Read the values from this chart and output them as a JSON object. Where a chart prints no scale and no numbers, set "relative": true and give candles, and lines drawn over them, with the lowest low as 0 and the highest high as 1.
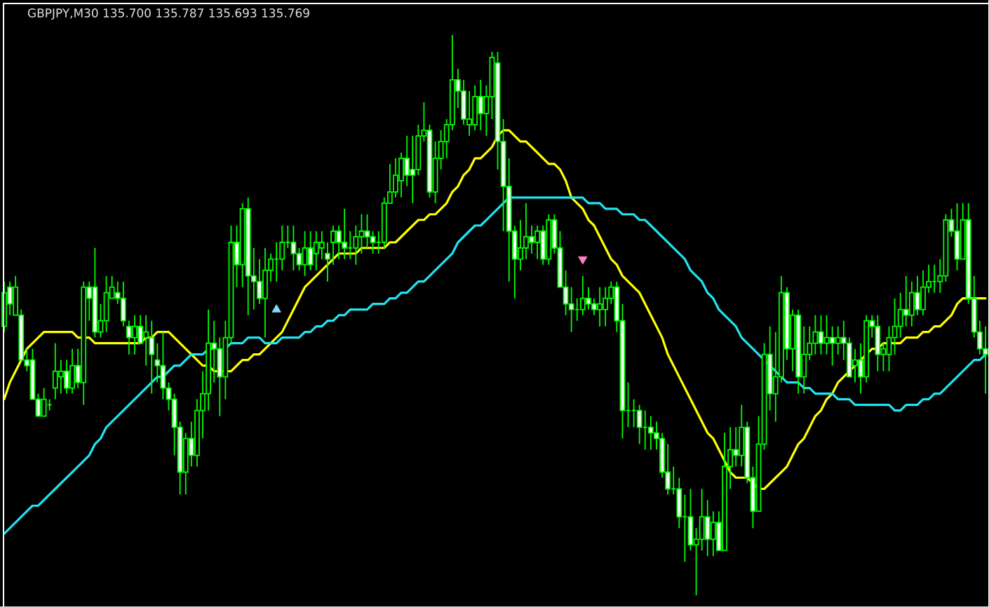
{
  "chart_data": {
    "type": "candlestick",
    "title": "GBPJPY,M30 135.700 135.787 135.693 135.769",
    "relative": true,
    "color": "#00ff00",
    "categories": [
      null,
      null,
      null,
      null,
      null,
      null,
      null,
      null,
      null,
      null,
      null,
      null,
      null,
      null,
      null,
      null,
      null,
      null,
      null,
      null,
      null,
      null,
      null,
      null,
      null,
      null,
      null,
      null,
      null,
      null,
      null,
      null,
      null,
      null,
      null,
      null,
      null,
      null,
      null,
      null,
      null,
      null,
      null,
      null,
      null,
      null,
      null,
      null,
      null,
      null,
      null,
      null,
      null,
      null,
      null,
      null,
      null,
      null,
      null,
      null,
      null,
      null,
      null,
      null,
      null,
      null,
      null,
      null,
      null,
      null,
      null,
      null,
      null,
      null,
      null,
      null,
      null,
      null,
      null,
      null,
      null,
      null,
      null,
      null,
      null,
      null,
      null,
      null,
      null,
      null,
      null,
      null,
      null,
      null,
      null,
      null,
      null,
      null,
      null,
      null,
      null,
      null,
      null,
      null,
      null,
      null,
      null,
      null,
      null,
      null,
      null,
      null,
      null,
      null,
      null,
      null,
      null,
      null,
      null,
      null,
      null,
      null,
      null,
      null,
      null,
      null,
      null,
      null,
      null,
      null,
      null,
      null,
      null,
      null,
      null,
      null,
      null,
      null,
      null,
      null,
      null,
      null,
      null,
      null,
      null,
      null,
      null,
      null,
      null,
      null,
      null,
      null,
      null,
      null,
      null,
      null,
      null,
      null,
      null,
      null,
      null,
      null,
      null,
      null,
      null,
      null,
      null,
      null,
      null,
      null,
      null,
      null,
      null,
      null
    ],
    "ohlc": [
      [
        0.48,
        0.56,
        0.47,
        0.54
      ],
      [
        0.55,
        0.56,
        0.5,
        0.52
      ],
      [
        0.5,
        0.57,
        0.5,
        0.55
      ],
      [
        0.5,
        0.51,
        0.42,
        0.42
      ],
      [
        0.42,
        0.44,
        0.4,
        0.41
      ],
      [
        0.42,
        0.44,
        0.35,
        0.35
      ],
      [
        0.35,
        0.36,
        0.32,
        0.32
      ],
      [
        0.32,
        0.37,
        0.32,
        0.35
      ],
      [
        0.34,
        0.35,
        0.33,
        0.34
      ],
      [
        0.37,
        0.45,
        0.35,
        0.4
      ],
      [
        0.39,
        0.42,
        0.36,
        0.4
      ],
      [
        0.4,
        0.42,
        0.36,
        0.37
      ],
      [
        0.37,
        0.44,
        0.36,
        0.41
      ],
      [
        0.41,
        0.44,
        0.37,
        0.38
      ],
      [
        0.38,
        0.56,
        0.34,
        0.55
      ],
      [
        0.55,
        0.56,
        0.49,
        0.53
      ],
      [
        0.55,
        0.62,
        0.46,
        0.47
      ],
      [
        0.47,
        0.52,
        0.46,
        0.49
      ],
      [
        0.49,
        0.57,
        0.47,
        0.54
      ],
      [
        0.53,
        0.57,
        0.53,
        0.55
      ],
      [
        0.54,
        0.56,
        0.52,
        0.53
      ],
      [
        0.53,
        0.56,
        0.48,
        0.49
      ],
      [
        0.48,
        0.49,
        0.43,
        0.46
      ],
      [
        0.46,
        0.5,
        0.43,
        0.48
      ],
      [
        0.48,
        0.5,
        0.45,
        0.45
      ],
      [
        0.46,
        0.5,
        0.41,
        0.47
      ],
      [
        0.46,
        0.49,
        0.36,
        0.43
      ],
      [
        0.42,
        0.45,
        0.38,
        0.41
      ],
      [
        0.41,
        0.47,
        0.35,
        0.37
      ],
      [
        0.37,
        0.38,
        0.33,
        0.35
      ],
      [
        0.35,
        0.36,
        0.25,
        0.3
      ],
      [
        0.3,
        0.31,
        0.18,
        0.22
      ],
      [
        0.22,
        0.29,
        0.18,
        0.28
      ],
      [
        0.28,
        0.31,
        0.23,
        0.25
      ],
      [
        0.25,
        0.35,
        0.23,
        0.33
      ],
      [
        0.33,
        0.4,
        0.28,
        0.36
      ],
      [
        0.36,
        0.51,
        0.33,
        0.45
      ],
      [
        0.45,
        0.49,
        0.38,
        0.44
      ],
      [
        0.44,
        0.46,
        0.32,
        0.39
      ],
      [
        0.39,
        0.49,
        0.35,
        0.46
      ],
      [
        0.46,
        0.66,
        0.45,
        0.63
      ],
      [
        0.63,
        0.66,
        0.55,
        0.59
      ],
      [
        0.59,
        0.7,
        0.55,
        0.69
      ],
      [
        0.69,
        0.71,
        0.5,
        0.57
      ],
      [
        0.57,
        0.62,
        0.51,
        0.56
      ],
      [
        0.56,
        0.6,
        0.52,
        0.53
      ],
      [
        0.53,
        0.62,
        0.46,
        0.58
      ],
      [
        0.58,
        0.61,
        0.56,
        0.6
      ],
      [
        0.6,
        0.63,
        0.56,
        0.6
      ],
      [
        0.6,
        0.66,
        0.58,
        0.63
      ],
      [
        0.63,
        0.66,
        0.62,
        0.63
      ],
      [
        0.63,
        0.66,
        0.58,
        0.61
      ],
      [
        0.61,
        0.62,
        0.58,
        0.59
      ],
      [
        0.59,
        0.65,
        0.57,
        0.62
      ],
      [
        0.62,
        0.65,
        0.58,
        0.59
      ],
      [
        0.61,
        0.65,
        0.58,
        0.63
      ],
      [
        0.62,
        0.65,
        0.6,
        0.63
      ],
      [
        0.61,
        0.63,
        0.56,
        0.6
      ],
      [
        0.63,
        0.66,
        0.59,
        0.65
      ],
      [
        0.65,
        0.66,
        0.6,
        0.63
      ],
      [
        0.63,
        0.69,
        0.6,
        0.62
      ],
      [
        0.62,
        0.65,
        0.6,
        0.62
      ],
      [
        0.62,
        0.66,
        0.59,
        0.64
      ],
      [
        0.64,
        0.68,
        0.61,
        0.65
      ],
      [
        0.65,
        0.68,
        0.62,
        0.64
      ],
      [
        0.64,
        0.65,
        0.61,
        0.63
      ],
      [
        0.63,
        0.65,
        0.61,
        0.63
      ],
      [
        0.63,
        0.71,
        0.62,
        0.7
      ],
      [
        0.7,
        0.77,
        0.7,
        0.72
      ],
      [
        0.72,
        0.78,
        0.71,
        0.75
      ],
      [
        0.74,
        0.79,
        0.71,
        0.78
      ],
      [
        0.78,
        0.82,
        0.73,
        0.75
      ],
      [
        0.76,
        0.82,
        0.7,
        0.75
      ],
      [
        0.76,
        0.84,
        0.75,
        0.82
      ],
      [
        0.82,
        0.88,
        0.81,
        0.83
      ],
      [
        0.83,
        0.84,
        0.71,
        0.72
      ],
      [
        0.72,
        0.81,
        0.7,
        0.78
      ],
      [
        0.78,
        0.83,
        0.76,
        0.81
      ],
      [
        0.81,
        0.85,
        0.78,
        0.84
      ],
      [
        0.84,
        1.0,
        0.83,
        0.92
      ],
      [
        0.92,
        0.94,
        0.87,
        0.9
      ],
      [
        0.9,
        0.92,
        0.84,
        0.85
      ],
      [
        0.84,
        0.9,
        0.82,
        0.85
      ],
      [
        0.84,
        0.91,
        0.83,
        0.89
      ],
      [
        0.89,
        0.92,
        0.83,
        0.86
      ],
      [
        0.86,
        0.91,
        0.82,
        0.89
      ],
      [
        0.89,
        0.97,
        0.85,
        0.96
      ],
      [
        0.95,
        0.97,
        0.76,
        0.81
      ],
      [
        0.81,
        0.85,
        0.65,
        0.73
      ],
      [
        0.73,
        0.78,
        0.56,
        0.65
      ],
      [
        0.65,
        0.66,
        0.53,
        0.6
      ],
      [
        0.6,
        0.67,
        0.58,
        0.62
      ],
      [
        0.62,
        0.7,
        0.6,
        0.64
      ],
      [
        0.64,
        0.66,
        0.61,
        0.63
      ],
      [
        0.63,
        0.66,
        0.6,
        0.65
      ],
      [
        0.65,
        0.66,
        0.59,
        0.6
      ],
      [
        0.6,
        0.68,
        0.59,
        0.67
      ],
      [
        0.67,
        0.68,
        0.61,
        0.62
      ],
      [
        0.62,
        0.65,
        0.55,
        0.55
      ],
      [
        0.55,
        0.58,
        0.5,
        0.52
      ],
      [
        0.52,
        0.55,
        0.47,
        0.51
      ],
      [
        0.51,
        0.53,
        0.49,
        0.51
      ],
      [
        0.51,
        0.57,
        0.5,
        0.53
      ],
      [
        0.53,
        0.55,
        0.51,
        0.52
      ],
      [
        0.52,
        0.53,
        0.5,
        0.51
      ],
      [
        0.51,
        0.55,
        0.48,
        0.52
      ],
      [
        0.51,
        0.55,
        0.48,
        0.53
      ],
      [
        0.53,
        0.56,
        0.52,
        0.55
      ],
      [
        0.55,
        0.56,
        0.47,
        0.49
      ],
      [
        0.49,
        0.52,
        0.28,
        0.33
      ],
      [
        0.33,
        0.38,
        0.3,
        0.33
      ],
      [
        0.33,
        0.35,
        0.3,
        0.33
      ],
      [
        0.33,
        0.34,
        0.27,
        0.3
      ],
      [
        0.3,
        0.33,
        0.26,
        0.3
      ],
      [
        0.3,
        0.32,
        0.26,
        0.29
      ],
      [
        0.29,
        0.31,
        0.26,
        0.28
      ],
      [
        0.28,
        0.29,
        0.21,
        0.22
      ],
      [
        0.22,
        0.27,
        0.18,
        0.19
      ],
      [
        0.19,
        0.23,
        0.18,
        0.19
      ],
      [
        0.19,
        0.21,
        0.12,
        0.14
      ],
      [
        0.14,
        0.18,
        0.06,
        0.14
      ],
      [
        0.14,
        0.19,
        0.08,
        0.09
      ],
      [
        0.09,
        0.12,
        0.0,
        0.1
      ],
      [
        0.1,
        0.19,
        0.08,
        0.14
      ],
      [
        0.14,
        0.17,
        0.07,
        0.1
      ],
      [
        0.1,
        0.15,
        0.07,
        0.13
      ],
      [
        0.13,
        0.15,
        0.08,
        0.08
      ],
      [
        0.08,
        0.29,
        0.08,
        0.23
      ],
      [
        0.23,
        0.3,
        0.19,
        0.26
      ],
      [
        0.26,
        0.3,
        0.23,
        0.25
      ],
      [
        0.25,
        0.34,
        0.23,
        0.3
      ],
      [
        0.3,
        0.31,
        0.2,
        0.21
      ],
      [
        0.21,
        0.23,
        0.12,
        0.15
      ],
      [
        0.15,
        0.32,
        0.15,
        0.27
      ],
      [
        0.27,
        0.45,
        0.26,
        0.43
      ],
      [
        0.43,
        0.48,
        0.33,
        0.36
      ],
      [
        0.36,
        0.47,
        0.31,
        0.39
      ],
      [
        0.39,
        0.57,
        0.38,
        0.54
      ],
      [
        0.54,
        0.55,
        0.42,
        0.44
      ],
      [
        0.44,
        0.51,
        0.4,
        0.5
      ],
      [
        0.5,
        0.51,
        0.36,
        0.39
      ],
      [
        0.39,
        0.48,
        0.36,
        0.43
      ],
      [
        0.43,
        0.48,
        0.42,
        0.45
      ],
      [
        0.45,
        0.5,
        0.43,
        0.47
      ],
      [
        0.47,
        0.5,
        0.43,
        0.45
      ],
      [
        0.45,
        0.5,
        0.43,
        0.46
      ],
      [
        0.46,
        0.48,
        0.41,
        0.45
      ],
      [
        0.45,
        0.48,
        0.43,
        0.46
      ],
      [
        0.46,
        0.49,
        0.42,
        0.45
      ],
      [
        0.45,
        0.46,
        0.39,
        0.39
      ],
      [
        0.41,
        0.44,
        0.38,
        0.42
      ],
      [
        0.42,
        0.45,
        0.36,
        0.39
      ],
      [
        0.39,
        0.5,
        0.38,
        0.49
      ],
      [
        0.49,
        0.5,
        0.46,
        0.48
      ],
      [
        0.48,
        0.5,
        0.4,
        0.43
      ],
      [
        0.43,
        0.45,
        0.4,
        0.44
      ],
      [
        0.43,
        0.48,
        0.4,
        0.46
      ],
      [
        0.46,
        0.53,
        0.43,
        0.48
      ],
      [
        0.48,
        0.54,
        0.46,
        0.51
      ],
      [
        0.51,
        0.57,
        0.48,
        0.5
      ],
      [
        0.5,
        0.56,
        0.48,
        0.54
      ],
      [
        0.54,
        0.57,
        0.5,
        0.51
      ],
      [
        0.51,
        0.58,
        0.5,
        0.55
      ],
      [
        0.55,
        0.59,
        0.54,
        0.56
      ],
      [
        0.56,
        0.59,
        0.54,
        0.56
      ],
      [
        0.56,
        0.6,
        0.54,
        0.57
      ],
      [
        0.57,
        0.68,
        0.56,
        0.67
      ],
      [
        0.67,
        0.69,
        0.64,
        0.65
      ],
      [
        0.65,
        0.7,
        0.58,
        0.6
      ],
      [
        0.6,
        0.7,
        0.6,
        0.67
      ],
      [
        0.67,
        0.7,
        0.52,
        0.53
      ],
      [
        0.53,
        0.57,
        0.46,
        0.47
      ],
      [
        0.47,
        0.49,
        0.43,
        0.44
      ],
      [
        0.44,
        0.48,
        0.36,
        0.43
      ]
    ],
    "series": [
      {
        "type": "line",
        "color": "#ffff00",
        "values": [
          0.35,
          0.38,
          0.4,
          0.42,
          0.44,
          0.45,
          0.46,
          0.47,
          0.47,
          0.47,
          0.47,
          0.47,
          0.47,
          0.46,
          0.46,
          0.46,
          0.45,
          0.45,
          0.45,
          0.45,
          0.45,
          0.45,
          0.45,
          0.45,
          0.45,
          0.46,
          0.46,
          0.47,
          0.47,
          0.47,
          0.46,
          0.45,
          0.44,
          0.43,
          0.42,
          0.41,
          0.41,
          0.4,
          0.4,
          0.4,
          0.4,
          0.41,
          0.42,
          0.42,
          0.43,
          0.43,
          0.44,
          0.45,
          0.46,
          0.47,
          0.49,
          0.51,
          0.53,
          0.55,
          0.56,
          0.57,
          0.58,
          0.59,
          0.6,
          0.61,
          0.61,
          0.61,
          0.61,
          0.62,
          0.62,
          0.62,
          0.62,
          0.62,
          0.63,
          0.63,
          0.64,
          0.65,
          0.66,
          0.67,
          0.67,
          0.68,
          0.68,
          0.69,
          0.7,
          0.72,
          0.73,
          0.75,
          0.76,
          0.78,
          0.78,
          0.79,
          0.8,
          0.82,
          0.83,
          0.83,
          0.82,
          0.81,
          0.81,
          0.8,
          0.79,
          0.78,
          0.77,
          0.77,
          0.76,
          0.74,
          0.71,
          0.7,
          0.69,
          0.67,
          0.66,
          0.64,
          0.62,
          0.6,
          0.59,
          0.57,
          0.56,
          0.55,
          0.54,
          0.52,
          0.5,
          0.48,
          0.46,
          0.43,
          0.41,
          0.39,
          0.37,
          0.35,
          0.33,
          0.31,
          0.29,
          0.28,
          0.26,
          0.24,
          0.22,
          0.21,
          0.21,
          0.21,
          0.2,
          0.19,
          0.19,
          0.2,
          0.21,
          0.22,
          0.23,
          0.25,
          0.27,
          0.28,
          0.3,
          0.32,
          0.33,
          0.35,
          0.36,
          0.38,
          0.39,
          0.4,
          0.41,
          0.42,
          0.43,
          0.44,
          0.44,
          0.45,
          0.45,
          0.45,
          0.45,
          0.46,
          0.46,
          0.46,
          0.47,
          0.47,
          0.48,
          0.48,
          0.49,
          0.5,
          0.52,
          0.53,
          0.53,
          0.53,
          0.53,
          0.53
        ]
      },
      {
        "type": "line",
        "color": "#22e4f0",
        "values": [
          0.11,
          0.12,
          0.13,
          0.14,
          0.15,
          0.16,
          0.16,
          0.17,
          0.18,
          0.19,
          0.2,
          0.21,
          0.22,
          0.23,
          0.24,
          0.25,
          0.27,
          0.28,
          0.3,
          0.31,
          0.32,
          0.33,
          0.34,
          0.35,
          0.36,
          0.37,
          0.38,
          0.39,
          0.39,
          0.4,
          0.41,
          0.41,
          0.42,
          0.43,
          0.43,
          0.43,
          0.44,
          0.44,
          null,
          0.44,
          0.45,
          0.45,
          0.45,
          0.46,
          0.46,
          0.46,
          0.45,
          0.45,
          0.45,
          0.46,
          0.46,
          0.46,
          0.46,
          0.47,
          0.47,
          0.48,
          0.48,
          0.49,
          0.49,
          0.5,
          0.5,
          0.51,
          0.51,
          0.51,
          0.51,
          0.52,
          0.52,
          0.52,
          0.53,
          0.53,
          0.54,
          0.54,
          0.55,
          0.56,
          0.56,
          0.57,
          0.58,
          0.59,
          0.6,
          0.61,
          0.63,
          0.64,
          0.65,
          0.66,
          0.66,
          0.67,
          0.68,
          0.69,
          0.7,
          0.71,
          0.71,
          0.71,
          0.71,
          0.71,
          0.71,
          0.71,
          0.71,
          0.71,
          0.71,
          0.71,
          0.71,
          0.71,
          0.71,
          0.7,
          0.7,
          0.7,
          0.69,
          0.69,
          0.69,
          0.68,
          0.68,
          0.68,
          0.67,
          0.67,
          0.66,
          0.65,
          0.64,
          0.63,
          0.62,
          0.61,
          0.6,
          0.58,
          0.57,
          0.56,
          0.54,
          0.53,
          0.51,
          0.5,
          0.49,
          0.48,
          0.46,
          0.45,
          0.44,
          0.43,
          0.42,
          0.41,
          0.4,
          0.39,
          0.38,
          0.38,
          0.38,
          0.37,
          0.37,
          0.36,
          0.36,
          0.36,
          0.36,
          0.35,
          0.35,
          0.35,
          0.34,
          0.34,
          0.34,
          0.34,
          0.34,
          0.34,
          0.34,
          0.33,
          0.33,
          0.34,
          0.34,
          0.34,
          0.35,
          0.35,
          0.36,
          0.36,
          0.37,
          0.38,
          0.39,
          0.4,
          0.41,
          0.42,
          0.42,
          0.43
        ]
      },
      {
        "type": "scatter",
        "color": "#80dcff",
        "marker": "triangle",
        "values": [
          null,
          null,
          null,
          null,
          null,
          null,
          null,
          null,
          null,
          null,
          null,
          null,
          null,
          null,
          null,
          null,
          null,
          null,
          null,
          null,
          null,
          null,
          null,
          null,
          null,
          null,
          null,
          null,
          null,
          null,
          null,
          null,
          null,
          null,
          null,
          null,
          null,
          null,
          null,
          null,
          null,
          null,
          null,
          null,
          null,
          null,
          null,
          null,
          0.51,
          null,
          null,
          null,
          null,
          null,
          null,
          null,
          null,
          null,
          null,
          null,
          null,
          null,
          null,
          null,
          null,
          null,
          null,
          null,
          null,
          null,
          null,
          null,
          null,
          null,
          null,
          null,
          null,
          null,
          null,
          null,
          null,
          null,
          null,
          null,
          null,
          null,
          null,
          null,
          null,
          null,
          null,
          null,
          null,
          null,
          null,
          null,
          null,
          null,
          null,
          null,
          null,
          null,
          null,
          null,
          null,
          null,
          null,
          null,
          null,
          null,
          null,
          null,
          null,
          null,
          null,
          null,
          null,
          null,
          null,
          null,
          null,
          null,
          null,
          null,
          null,
          null,
          null,
          null,
          null,
          null,
          null,
          null,
          null,
          null,
          null,
          null,
          null,
          null,
          null,
          null,
          null,
          null,
          null,
          null,
          null,
          null,
          null,
          null,
          null,
          null,
          null,
          null,
          null,
          null,
          null,
          null,
          null,
          null,
          null,
          null,
          null,
          null,
          null,
          null,
          null,
          null,
          null,
          null,
          null,
          null,
          null,
          null,
          null,
          null
        ]
      },
      {
        "type": "scatter",
        "color": "#ff80c0",
        "marker": "triangle",
        "values": [
          null,
          null,
          null,
          null,
          null,
          null,
          null,
          null,
          null,
          null,
          null,
          null,
          null,
          null,
          null,
          null,
          null,
          null,
          null,
          null,
          null,
          null,
          null,
          null,
          null,
          null,
          null,
          null,
          null,
          null,
          null,
          null,
          null,
          null,
          null,
          null,
          null,
          null,
          null,
          null,
          null,
          null,
          null,
          null,
          null,
          null,
          null,
          null,
          null,
          null,
          null,
          null,
          null,
          null,
          null,
          null,
          null,
          null,
          null,
          null,
          null,
          null,
          null,
          null,
          null,
          null,
          null,
          null,
          null,
          null,
          null,
          null,
          null,
          null,
          null,
          null,
          null,
          null,
          null,
          null,
          null,
          null,
          null,
          null,
          null,
          null,
          null,
          null,
          null,
          null,
          null,
          null,
          null,
          null,
          null,
          null,
          null,
          null,
          null,
          null,
          null,
          null,
          0.6,
          null,
          null,
          null,
          null,
          null,
          null,
          null,
          null,
          null,
          null,
          null,
          null,
          null,
          null,
          null,
          null,
          null,
          null,
          null,
          null,
          null,
          null,
          null,
          null,
          null,
          null,
          null,
          null,
          null,
          null,
          null,
          null,
          null,
          null,
          null,
          null,
          null,
          null,
          null,
          null,
          null,
          null,
          null,
          null,
          null,
          null,
          null,
          null,
          null,
          null,
          null,
          null,
          null,
          null,
          null,
          null,
          null,
          null,
          null,
          null,
          null,
          null,
          null,
          null,
          null,
          null,
          null,
          null,
          null,
          null,
          null
        ]
      }
    ]
  }
}
